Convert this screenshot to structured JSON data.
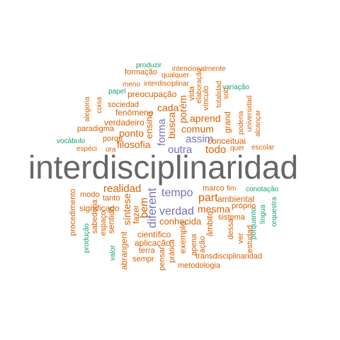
{
  "palette": {
    "teal": "#1b9e77",
    "orange": "#d95f02",
    "purple": "#7570b3",
    "gray": "#666666"
  },
  "words": [
    {
      "text": "interdisciplinaridad",
      "color": "gray"
    },
    {
      "text": "produzir",
      "color": "teal"
    },
    {
      "text": "intencionalmente",
      "color": "orange"
    },
    {
      "text": "formação",
      "color": "orange"
    },
    {
      "text": "qualquer",
      "color": "orange"
    },
    {
      "text": "meno",
      "color": "orange"
    },
    {
      "text": "interdisciplinar",
      "color": "orange"
    },
    {
      "text": "papel",
      "color": "teal"
    },
    {
      "text": "preocupação",
      "color": "orange"
    },
    {
      "text": "vida",
      "color": "orange"
    },
    {
      "text": "elaboração",
      "color": "orange"
    },
    {
      "text": "vínculo",
      "color": "orange"
    },
    {
      "text": "variação",
      "color": "teal"
    },
    {
      "text": "sob",
      "color": "orange"
    },
    {
      "text": "totalidad",
      "color": "orange"
    },
    {
      "text": "alegoria",
      "color": "orange"
    },
    {
      "text": "coisa",
      "color": "orange"
    },
    {
      "text": "sociedad",
      "color": "orange"
    },
    {
      "text": "fenômeno",
      "color": "orange"
    },
    {
      "text": "cada",
      "color": "orange"
    },
    {
      "text": "porém",
      "color": "orange"
    },
    {
      "text": "universidad",
      "color": "orange"
    },
    {
      "text": "poderia",
      "color": "orange"
    },
    {
      "text": "alcançar",
      "color": "orange"
    },
    {
      "text": "verdadeiro",
      "color": "orange"
    },
    {
      "text": "ensino",
      "color": "orange"
    },
    {
      "text": "aprend",
      "color": "orange"
    },
    {
      "text": "paradigma",
      "color": "orange"
    },
    {
      "text": "ponto",
      "color": "orange"
    },
    {
      "text": "forma",
      "color": "purple"
    },
    {
      "text": "busca",
      "color": "orange"
    },
    {
      "text": "comum",
      "color": "orange"
    },
    {
      "text": "grand",
      "color": "orange"
    },
    {
      "text": "vocábulo",
      "color": "teal"
    },
    {
      "text": "porqu",
      "color": "orange"
    },
    {
      "text": "assim",
      "color": "purple"
    },
    {
      "text": "conceituai",
      "color": "orange"
    },
    {
      "text": "espéci",
      "color": "orange"
    },
    {
      "text": "ora",
      "color": "orange"
    },
    {
      "text": "filosofia",
      "color": "orange"
    },
    {
      "text": "outra",
      "color": "purple"
    },
    {
      "text": "todo",
      "color": "orange"
    },
    {
      "text": "quer",
      "color": "orange"
    },
    {
      "text": "escolar",
      "color": "orange"
    },
    {
      "text": "realidad",
      "color": "orange"
    },
    {
      "text": "diferent",
      "color": "purple"
    },
    {
      "text": "tempo",
      "color": "purple"
    },
    {
      "text": "marco",
      "color": "orange"
    },
    {
      "text": "fim",
      "color": "orange"
    },
    {
      "text": "conotação",
      "color": "teal"
    },
    {
      "text": "modo",
      "color": "orange"
    },
    {
      "text": "tanto",
      "color": "orange"
    },
    {
      "text": "part",
      "color": "orange"
    },
    {
      "text": "ambiental",
      "color": "orange"
    },
    {
      "text": "procedimento",
      "color": "orange"
    },
    {
      "text": "síntese",
      "color": "orange"
    },
    {
      "text": "bem",
      "color": "orange"
    },
    {
      "text": "próprio",
      "color": "orange"
    },
    {
      "text": "língua",
      "color": "teal"
    },
    {
      "text": "significado",
      "color": "orange"
    },
    {
      "text": "verdad",
      "color": "purple"
    },
    {
      "text": "mesma",
      "color": "orange"
    },
    {
      "text": "sabedoria",
      "color": "orange"
    },
    {
      "text": "espaço",
      "color": "orange"
    },
    {
      "text": "orquestra",
      "color": "teal"
    },
    {
      "text": "sentido",
      "color": "orange"
    },
    {
      "text": "fazer",
      "color": "orange"
    },
    {
      "text": "sistema",
      "color": "orange"
    },
    {
      "text": "conhecida",
      "color": "orange"
    },
    {
      "text": "âmbito",
      "color": "orange"
    },
    {
      "text": "dessa",
      "color": "orange"
    },
    {
      "text": "produção",
      "color": "teal"
    },
    {
      "text": "científico",
      "color": "orange"
    },
    {
      "text": "abrangent",
      "color": "orange"
    },
    {
      "text": "aplicação",
      "color": "orange"
    },
    {
      "text": "exemplo",
      "color": "orange"
    },
    {
      "text": "apena",
      "color": "orange"
    },
    {
      "text": "ação",
      "color": "orange"
    },
    {
      "text": "ver",
      "color": "orange"
    },
    {
      "text": "estudad",
      "color": "orange"
    },
    {
      "text": "porquanto",
      "color": "teal"
    },
    {
      "text": "valor",
      "color": "teal"
    },
    {
      "text": "terra",
      "color": "orange"
    },
    {
      "text": "prática",
      "color": "orange"
    },
    {
      "text": "sempr",
      "color": "orange"
    },
    {
      "text": "pensar",
      "color": "orange"
    },
    {
      "text": "transdisciplinaridad",
      "color": "orange"
    },
    {
      "text": "metodologia",
      "color": "orange"
    }
  ]
}
